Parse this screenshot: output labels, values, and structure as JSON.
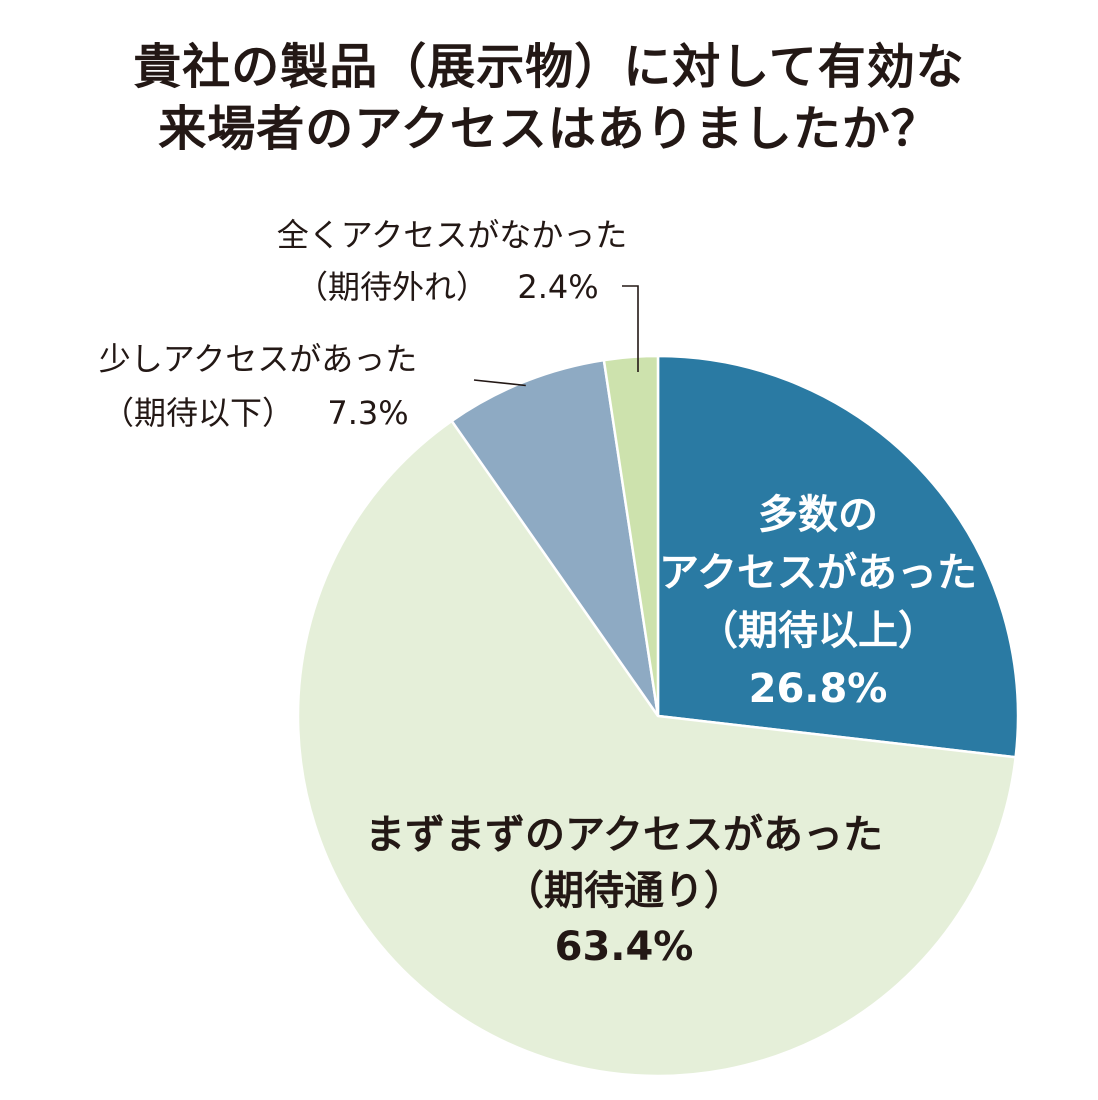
{
  "chart_data": {
    "type": "pie",
    "title": [
      "貴社の製品（展示物）に対して有効な",
      "来場者のアクセスはありましたか？"
    ],
    "slices": [
      {
        "label": [
          "多数の",
          "アクセスがあった",
          "（期待以上）"
        ],
        "value": 26.8,
        "value_text": "26.8%",
        "color": "#2a7aa3",
        "label_position": "inside"
      },
      {
        "label": [
          "まずまずのアクセスがあった",
          "（期待通り）"
        ],
        "value": 63.4,
        "value_text": "63.4%",
        "color": "#e5efd9",
        "label_position": "inside"
      },
      {
        "label": [
          "少しアクセスがあった",
          "（期待以下）"
        ],
        "value": 7.3,
        "value_text": "7.3%",
        "color": "#8eaac3",
        "label_position": "outside"
      },
      {
        "label": [
          "全くアクセスがなかった",
          "（期待外れ）"
        ],
        "value": 2.4,
        "value_text": "2.4%",
        "color": "#cde2ad",
        "label_position": "outside"
      }
    ],
    "start_angle": "12 o'clock",
    "direction": "clockwise"
  }
}
